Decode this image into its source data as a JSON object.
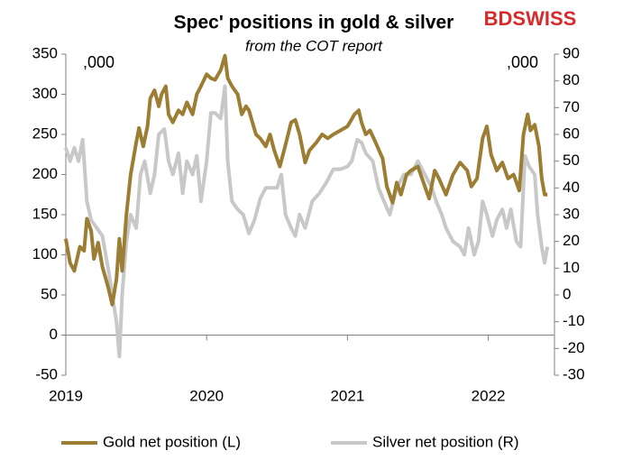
{
  "chart_data": {
    "type": "line",
    "title": "Spec' positions in gold & silver",
    "subtitle": "from the COT report",
    "brand": "BDSWISS",
    "annotations": [
      ",000",
      ",000"
    ],
    "xlim": [
      2019,
      2022.47
    ],
    "xticks": [
      2019,
      2020,
      2021,
      2022
    ],
    "ylim": [
      -50,
      350
    ],
    "yticks": [
      -50,
      0,
      50,
      100,
      150,
      200,
      250,
      300,
      350
    ],
    "y2lim": [
      -30,
      90
    ],
    "y2ticks": [
      -30,
      -20,
      -10,
      0,
      10,
      20,
      30,
      40,
      50,
      60,
      70,
      80,
      90
    ],
    "series": [
      {
        "name": "Gold net position (L)",
        "color": "#9c7d34",
        "axis": "y",
        "x": [
          2019.0,
          2019.03,
          2019.06,
          2019.1,
          2019.13,
          2019.15,
          2019.18,
          2019.2,
          2019.23,
          2019.26,
          2019.3,
          2019.33,
          2019.36,
          2019.38,
          2019.4,
          2019.43,
          2019.46,
          2019.5,
          2019.52,
          2019.55,
          2019.58,
          2019.6,
          2019.63,
          2019.66,
          2019.68,
          2019.71,
          2019.73,
          2019.76,
          2019.8,
          2019.83,
          2019.86,
          2019.9,
          2019.93,
          2019.96,
          2020.0,
          2020.03,
          2020.06,
          2020.1,
          2020.13,
          2020.15,
          2020.18,
          2020.22,
          2020.25,
          2020.28,
          2020.3,
          2020.35,
          2020.38,
          2020.42,
          2020.45,
          2020.48,
          2020.52,
          2020.55,
          2020.6,
          2020.63,
          2020.66,
          2020.7,
          2020.73,
          2020.78,
          2020.82,
          2020.86,
          2020.9,
          2020.95,
          2021.0,
          2021.05,
          2021.08,
          2021.1,
          2021.13,
          2021.16,
          2021.2,
          2021.25,
          2021.28,
          2021.32,
          2021.35,
          2021.38,
          2021.42,
          2021.45,
          2021.5,
          2021.55,
          2021.58,
          2021.62,
          2021.65,
          2021.7,
          2021.75,
          2021.8,
          2021.85,
          2021.88,
          2021.92,
          2021.96,
          2021.99,
          2022.02,
          2022.06,
          2022.1,
          2022.14,
          2022.18,
          2022.22,
          2022.25,
          2022.28,
          2022.3,
          2022.33,
          2022.36,
          2022.38,
          2022.4,
          2022.42
        ],
        "values": [
          120,
          90,
          80,
          110,
          105,
          145,
          130,
          95,
          115,
          85,
          60,
          38,
          70,
          120,
          80,
          150,
          200,
          240,
          258,
          235,
          260,
          295,
          305,
          285,
          300,
          310,
          275,
          265,
          280,
          275,
          290,
          275,
          300,
          310,
          325,
          320,
          318,
          330,
          348,
          320,
          310,
          300,
          275,
          285,
          280,
          250,
          245,
          235,
          250,
          230,
          210,
          230,
          265,
          268,
          250,
          215,
          230,
          240,
          250,
          245,
          250,
          255,
          260,
          275,
          280,
          265,
          250,
          255,
          240,
          220,
          185,
          165,
          190,
          175,
          200,
          205,
          210,
          185,
          170,
          205,
          195,
          175,
          200,
          215,
          205,
          185,
          195,
          245,
          260,
          225,
          205,
          215,
          195,
          200,
          180,
          250,
          275,
          255,
          262,
          235,
          195,
          175,
          175
        ]
      },
      {
        "name": "Silver net position (R)",
        "color": "#c8c8c8",
        "axis": "y2",
        "x": [
          2019.0,
          2019.03,
          2019.06,
          2019.09,
          2019.12,
          2019.15,
          2019.18,
          2019.22,
          2019.26,
          2019.3,
          2019.33,
          2019.36,
          2019.38,
          2019.4,
          2019.43,
          2019.46,
          2019.5,
          2019.53,
          2019.56,
          2019.6,
          2019.63,
          2019.66,
          2019.7,
          2019.73,
          2019.76,
          2019.8,
          2019.83,
          2019.86,
          2019.9,
          2019.93,
          2019.96,
          2020.0,
          2020.03,
          2020.06,
          2020.1,
          2020.13,
          2020.15,
          2020.18,
          2020.22,
          2020.26,
          2020.3,
          2020.34,
          2020.38,
          2020.42,
          2020.46,
          2020.5,
          2020.53,
          2020.56,
          2020.6,
          2020.63,
          2020.66,
          2020.7,
          2020.75,
          2020.8,
          2020.85,
          2020.9,
          2020.95,
          2021.0,
          2021.03,
          2021.07,
          2021.1,
          2021.13,
          2021.18,
          2021.22,
          2021.26,
          2021.3,
          2021.35,
          2021.4,
          2021.45,
          2021.5,
          2021.55,
          2021.6,
          2021.63,
          2021.67,
          2021.7,
          2021.75,
          2021.8,
          2021.83,
          2021.86,
          2021.9,
          2021.93,
          2021.96,
          2021.99,
          2022.03,
          2022.06,
          2022.1,
          2022.13,
          2022.16,
          2022.2,
          2022.23,
          2022.26,
          2022.29,
          2022.33,
          2022.35,
          2022.38,
          2022.4,
          2022.42
        ],
        "values": [
          55,
          50,
          55,
          50,
          58,
          35,
          28,
          25,
          22,
          10,
          0,
          -10,
          -23,
          0,
          20,
          30,
          25,
          45,
          50,
          38,
          45,
          60,
          62,
          50,
          45,
          53,
          38,
          50,
          45,
          52,
          35,
          50,
          68,
          68,
          66,
          78,
          50,
          35,
          32,
          30,
          23,
          28,
          36,
          40,
          40,
          40,
          45,
          30,
          25,
          22,
          30,
          25,
          35,
          38,
          42,
          47,
          47,
          48,
          50,
          58,
          57,
          53,
          50,
          40,
          35,
          30,
          40,
          45,
          45,
          50,
          45,
          40,
          35,
          30,
          25,
          20,
          18,
          15,
          25,
          15,
          20,
          35,
          30,
          22,
          28,
          32,
          25,
          32,
          20,
          18,
          52,
          48,
          45,
          30,
          18,
          12,
          18
        ]
      }
    ]
  }
}
